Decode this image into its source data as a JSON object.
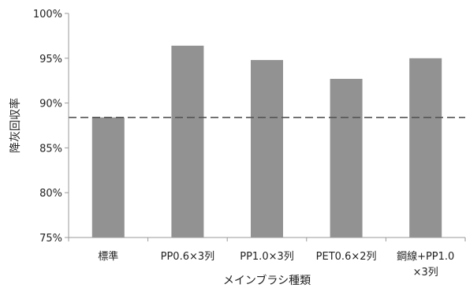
{
  "chart_data": {
    "type": "bar",
    "title": "",
    "xlabel": "メインブラシ種類",
    "ylabel": "降灰回収率",
    "categories": [
      [
        "標準"
      ],
      [
        "PP0.6×3列"
      ],
      [
        "PP1.0×3列"
      ],
      [
        "PET0.6×2列"
      ],
      [
        "鋼線+PP1.0",
        "×3列"
      ]
    ],
    "values": [
      88.4,
      96.4,
      94.8,
      92.7,
      95.0
    ],
    "ylim": [
      75,
      100
    ],
    "yticks": [
      75,
      80,
      85,
      90,
      95,
      100
    ],
    "ytick_labels": [
      "75%",
      "80%",
      "85%",
      "90%",
      "95%",
      "100%"
    ],
    "reference_line": {
      "value": 88.4,
      "style": "dashed"
    },
    "grid": false,
    "legend": "none",
    "colors": {
      "bar": "#929292",
      "axis": "#9a9a9a",
      "reference": "#555555"
    }
  }
}
